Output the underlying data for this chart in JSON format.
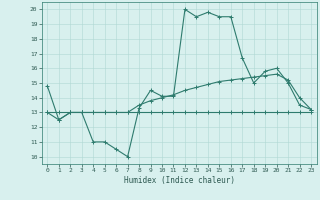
{
  "xlabel": "Humidex (Indice chaleur)",
  "xlim": [
    -0.5,
    23.5
  ],
  "ylim": [
    9.5,
    20.5
  ],
  "xticks": [
    0,
    1,
    2,
    3,
    4,
    5,
    6,
    7,
    8,
    9,
    10,
    11,
    12,
    13,
    14,
    15,
    16,
    17,
    18,
    19,
    20,
    21,
    22,
    23
  ],
  "yticks": [
    10,
    11,
    12,
    13,
    14,
    15,
    16,
    17,
    18,
    19,
    20
  ],
  "bg_color": "#d8f0ee",
  "grid_color": "#b0d8d4",
  "line_color": "#2e7b6e",
  "line1_x": [
    0,
    1,
    2,
    3,
    4,
    5,
    6,
    7,
    8,
    9,
    10,
    11,
    12,
    13,
    14,
    15,
    16,
    17,
    18,
    19,
    20,
    21,
    22,
    23
  ],
  "line1_y": [
    14.8,
    12.5,
    13.0,
    13.0,
    11.0,
    11.0,
    10.5,
    10.0,
    13.3,
    14.5,
    14.1,
    14.1,
    20.0,
    19.5,
    19.8,
    19.5,
    19.5,
    16.7,
    15.0,
    15.8,
    16.0,
    15.0,
    13.5,
    13.2
  ],
  "line2_x": [
    0,
    1,
    2,
    3,
    4,
    5,
    6,
    7,
    8,
    9,
    10,
    11,
    12,
    13,
    14,
    15,
    16,
    17,
    18,
    19,
    20,
    21,
    22,
    23
  ],
  "line2_y": [
    13.0,
    13.0,
    13.0,
    13.0,
    13.0,
    13.0,
    13.0,
    13.0,
    13.0,
    13.0,
    13.0,
    13.0,
    13.0,
    13.0,
    13.0,
    13.0,
    13.0,
    13.0,
    13.0,
    13.0,
    13.0,
    13.0,
    13.0,
    13.0
  ],
  "line3_x": [
    0,
    1,
    2,
    3,
    4,
    5,
    6,
    7,
    8,
    9,
    10,
    11,
    12,
    13,
    14,
    15,
    16,
    17,
    18,
    19,
    20,
    21,
    22,
    23
  ],
  "line3_y": [
    13.0,
    12.5,
    13.0,
    13.0,
    13.0,
    13.0,
    13.0,
    13.0,
    13.5,
    13.8,
    14.0,
    14.2,
    14.5,
    14.7,
    14.9,
    15.1,
    15.2,
    15.3,
    15.4,
    15.5,
    15.6,
    15.2,
    14.0,
    13.2
  ],
  "line_width": 0.8,
  "marker_size": 2.5,
  "xlabel_fontsize": 5.5,
  "tick_fontsize": 4.5
}
